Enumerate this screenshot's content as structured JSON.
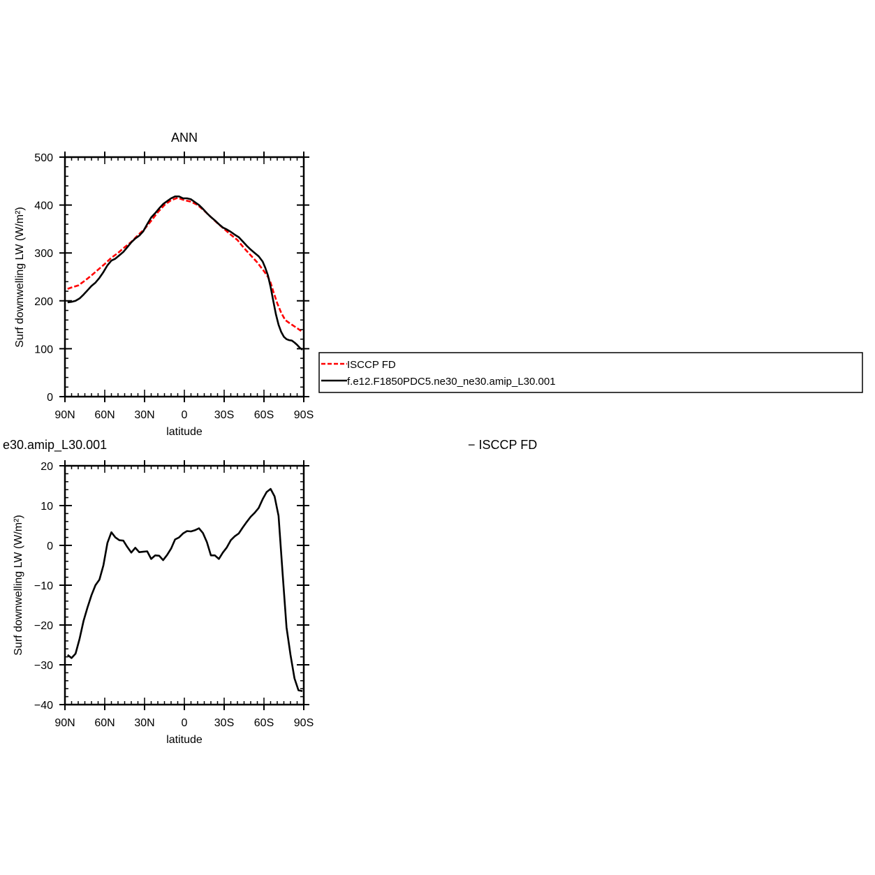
{
  "chart_data": [
    {
      "type": "line",
      "title": "ANN",
      "xlabel": "latitude",
      "ylabel": "Surf downwelling LW (W/m²)",
      "xlim": [
        -90,
        90
      ],
      "ylim": [
        0,
        500
      ],
      "xticks": [
        {
          "value": -90,
          "label": "90N"
        },
        {
          "value": -60,
          "label": "60N"
        },
        {
          "value": -30,
          "label": "30N"
        },
        {
          "value": 0,
          "label": "0"
        },
        {
          "value": 30,
          "label": "30S"
        },
        {
          "value": 60,
          "label": "60S"
        },
        {
          "value": 90,
          "label": "90S"
        }
      ],
      "yticks": [
        0,
        100,
        200,
        300,
        400,
        500
      ],
      "legend_position": "right",
      "series": [
        {
          "name": "ISCCP FD",
          "color": "#ff0000",
          "dash": "dashed",
          "x": [
            -88,
            -85,
            -80,
            -75,
            -70,
            -65,
            -60,
            -55,
            -50,
            -45,
            -40,
            -35,
            -30,
            -25,
            -20,
            -15,
            -10,
            -5,
            0,
            5,
            10,
            15,
            20,
            25,
            30,
            35,
            40,
            45,
            50,
            55,
            60,
            63,
            65,
            67,
            70,
            73,
            76,
            80,
            85,
            88
          ],
          "y": [
            225,
            228,
            232,
            242,
            253,
            265,
            277,
            290,
            300,
            312,
            323,
            337,
            350,
            367,
            385,
            400,
            410,
            415,
            410,
            407,
            400,
            388,
            375,
            362,
            350,
            338,
            327,
            310,
            295,
            280,
            262,
            250,
            238,
            220,
            195,
            175,
            160,
            152,
            143,
            137
          ]
        },
        {
          "name": "f.e12.F1850PDC5.ne30_ne30.amip_L30.001",
          "color": "#000000",
          "dash": "solid",
          "x": [
            -88,
            -85,
            -82,
            -79,
            -76,
            -73,
            -70,
            -67,
            -64,
            -61,
            -58,
            -55,
            -52,
            -49,
            -46,
            -43,
            -40,
            -37,
            -34,
            -31,
            -28,
            -25,
            -22,
            -19,
            -16,
            -13,
            -10,
            -7,
            -4,
            -1,
            2,
            5,
            8,
            11,
            14,
            17,
            20,
            23,
            26,
            29,
            32,
            35,
            38,
            41,
            44,
            47,
            50,
            53,
            56,
            59,
            61,
            63,
            65,
            67,
            69,
            71,
            73,
            75,
            77,
            79,
            81,
            83,
            85,
            87,
            89
          ],
          "y": [
            197,
            198,
            200,
            205,
            213,
            222,
            231,
            238,
            248,
            260,
            274,
            284,
            288,
            295,
            302,
            312,
            322,
            330,
            336,
            345,
            360,
            374,
            383,
            393,
            402,
            408,
            414,
            418,
            418,
            414,
            414,
            412,
            406,
            400,
            392,
            383,
            375,
            368,
            360,
            353,
            349,
            344,
            338,
            333,
            324,
            315,
            307,
            300,
            293,
            282,
            269,
            253,
            229,
            200,
            172,
            150,
            135,
            125,
            120,
            118,
            117,
            113,
            108,
            102,
            98
          ]
        }
      ]
    },
    {
      "type": "line",
      "title": "e30.amip_L30.001",
      "right_title": "− ISCCP FD",
      "xlabel": "latitude",
      "ylabel": "Surf downwelling LW (W/m²)",
      "xlim": [
        -90,
        90
      ],
      "ylim": [
        -40,
        20
      ],
      "xticks": [
        {
          "value": -90,
          "label": "90N"
        },
        {
          "value": -60,
          "label": "60N"
        },
        {
          "value": -30,
          "label": "30N"
        },
        {
          "value": 0,
          "label": "0"
        },
        {
          "value": 30,
          "label": "30S"
        },
        {
          "value": 60,
          "label": "60S"
        },
        {
          "value": 90,
          "label": "90S"
        }
      ],
      "yticks": [
        -40,
        -30,
        -20,
        -10,
        0,
        10,
        20
      ],
      "series": [
        {
          "color": "#000000",
          "dash": "solid",
          "x": [
            -88,
            -85,
            -82,
            -79,
            -76,
            -73,
            -70,
            -67,
            -64,
            -61,
            -58,
            -55,
            -52,
            -49,
            -46,
            -43,
            -40,
            -37,
            -34,
            -31,
            -28,
            -25,
            -22,
            -19,
            -16,
            -13,
            -10,
            -7,
            -4,
            -1,
            2,
            5,
            8,
            11,
            14,
            17,
            20,
            23,
            26,
            29,
            32,
            35,
            38,
            41,
            44,
            47,
            50,
            53,
            56,
            59,
            62,
            65,
            68,
            71,
            74,
            77,
            80,
            83,
            86,
            89
          ],
          "y": [
            -27.5,
            -28.3,
            -27.2,
            -23.5,
            -19.0,
            -15.6,
            -12.5,
            -10.0,
            -8.6,
            -5.0,
            0.6,
            3.3,
            2.0,
            1.3,
            1.2,
            -0.4,
            -1.8,
            -0.6,
            -1.7,
            -1.6,
            -1.5,
            -3.4,
            -2.5,
            -2.6,
            -3.7,
            -2.4,
            -0.8,
            1.5,
            2.0,
            3.0,
            3.6,
            3.5,
            3.8,
            4.3,
            3.1,
            0.8,
            -2.5,
            -2.5,
            -3.4,
            -1.8,
            -0.5,
            1.3,
            2.3,
            3.0,
            4.5,
            5.9,
            7.2,
            8.2,
            9.4,
            11.6,
            13.4,
            14.2,
            12.3,
            7.4,
            -6.8,
            -20.6,
            -27.5,
            -33.4,
            -36.4,
            -36.6
          ]
        }
      ]
    }
  ]
}
